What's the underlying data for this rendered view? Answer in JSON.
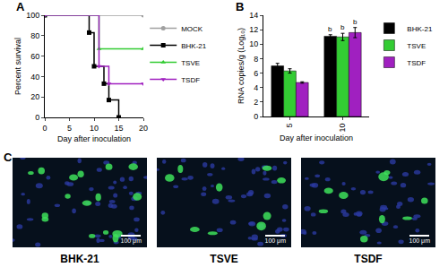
{
  "chart_data": [
    {
      "panel": "A",
      "type": "line",
      "line_style": "step",
      "x_label": "Day after inoculation",
      "y_label": "Percent survival",
      "xlim": [
        0,
        20
      ],
      "xticks": [
        0,
        5,
        10,
        15,
        20
      ],
      "ylim": [
        0,
        100
      ],
      "yticks": [
        0,
        20,
        40,
        60,
        80,
        100
      ],
      "grid": false,
      "legend": "right",
      "series": [
        {
          "name": "MOCK",
          "color": "#a0a0a0",
          "marker": "circle",
          "x": [
            0,
            20
          ],
          "values": [
            100,
            100
          ]
        },
        {
          "name": "BHK-21",
          "color": "#000000",
          "marker": "square",
          "x": [
            0,
            9,
            10,
            12,
            13,
            15
          ],
          "values": [
            100,
            83,
            50,
            33,
            17,
            0
          ]
        },
        {
          "name": "TSVE",
          "color": "#33cc33",
          "marker": "triangle-up",
          "x": [
            0,
            11,
            20
          ],
          "values": [
            100,
            67,
            67
          ]
        },
        {
          "name": "TSDF",
          "color": "#a020c0",
          "marker": "triangle-down",
          "x": [
            0,
            11,
            13,
            20
          ],
          "values": [
            100,
            50,
            33,
            33
          ]
        }
      ]
    },
    {
      "panel": "B",
      "type": "bar",
      "x_label": "Day after inoculation",
      "y_label": "RNA copies/g (Log₁₀)",
      "categories": [
        "5",
        "10"
      ],
      "ylim": [
        0,
        14
      ],
      "yticks": [
        0,
        2,
        4,
        6,
        8,
        10,
        12,
        14
      ],
      "grid": false,
      "legend": "right",
      "series": [
        {
          "name": "BHK-21",
          "color": "#000000",
          "values": [
            7.0,
            11.1
          ],
          "errors": [
            0.35,
            0.2
          ],
          "annotations": [
            null,
            "b"
          ]
        },
        {
          "name": "TSVE",
          "color": "#33cc33",
          "values": [
            6.3,
            11.0
          ],
          "errors": [
            0.3,
            0.5
          ],
          "annotations": [
            null,
            "b"
          ]
        },
        {
          "name": "TSDF",
          "color": "#a020c0",
          "values": [
            4.7,
            11.6
          ],
          "errors": [
            0.1,
            0.7
          ],
          "annotations": [
            null,
            "b"
          ]
        }
      ]
    }
  ],
  "panel_c": {
    "panel": "C",
    "images": [
      {
        "label": "BHK-21",
        "scale_bar": "100 μm"
      },
      {
        "label": "TSVE",
        "scale_bar": "100 μm"
      },
      {
        "label": "TSDF",
        "scale_bar": "100 μm"
      }
    ]
  }
}
